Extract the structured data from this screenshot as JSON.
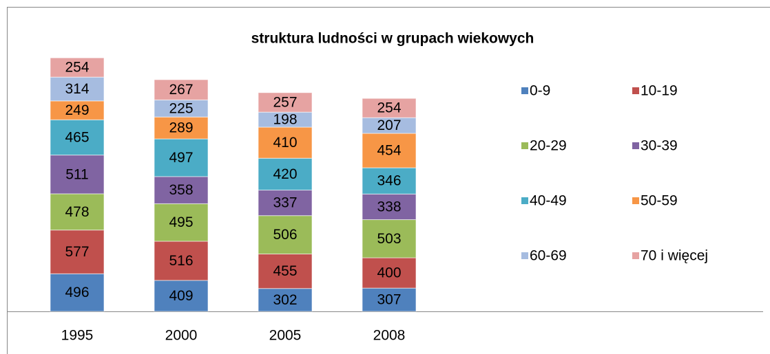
{
  "chart_data": {
    "type": "bar",
    "stacked": true,
    "title": "struktura ludności w grupach wiekowych",
    "categories": [
      "1995",
      "2000",
      "2005",
      "2008"
    ],
    "series": [
      {
        "name": "0-9",
        "color": "#4f81bd",
        "values": [
          496,
          409,
          302,
          307
        ]
      },
      {
        "name": "10-19",
        "color": "#c0504d",
        "values": [
          577,
          516,
          455,
          400
        ]
      },
      {
        "name": "20-29",
        "color": "#9bbb59",
        "values": [
          478,
          495,
          506,
          503
        ]
      },
      {
        "name": "30-39",
        "color": "#8064a2",
        "values": [
          511,
          358,
          337,
          338
        ]
      },
      {
        "name": "40-49",
        "color": "#4bacc6",
        "values": [
          465,
          497,
          420,
          346
        ]
      },
      {
        "name": "50-59",
        "color": "#f79646",
        "values": [
          249,
          289,
          410,
          454
        ]
      },
      {
        "name": "60-69",
        "color": "#a6bce0",
        "values": [
          314,
          225,
          198,
          207
        ]
      },
      {
        "name": "70 i więcej",
        "color": "#e6a3a2",
        "values": [
          254,
          267,
          257,
          254
        ]
      }
    ]
  }
}
